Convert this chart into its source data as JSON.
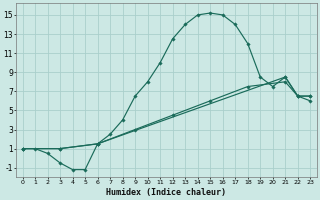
{
  "xlabel": "Humidex (Indice chaleur)",
  "background_color": "#cce8e4",
  "grid_color": "#aacfcc",
  "line_color": "#1a6b5a",
  "xlim": [
    -0.5,
    23.5
  ],
  "ylim": [
    -2.0,
    16.2
  ],
  "xticks": [
    0,
    1,
    2,
    3,
    4,
    5,
    6,
    7,
    8,
    9,
    10,
    11,
    12,
    13,
    14,
    15,
    16,
    17,
    18,
    19,
    20,
    21,
    22,
    23
  ],
  "yticks": [
    -1,
    1,
    3,
    5,
    7,
    9,
    11,
    13,
    15
  ],
  "curve1_x": [
    0,
    1,
    2,
    3,
    4,
    5,
    6,
    7,
    8,
    9,
    10,
    11,
    12,
    13,
    14,
    15,
    16,
    17,
    18,
    19,
    20,
    21,
    22,
    23
  ],
  "curve1_y": [
    1.0,
    1.0,
    0.5,
    -0.5,
    -1.2,
    -1.2,
    1.5,
    2.5,
    4.0,
    6.5,
    8.0,
    10.0,
    12.5,
    14.0,
    15.0,
    15.2,
    15.0,
    14.0,
    12.0,
    8.5,
    7.5,
    8.5,
    6.5,
    6.5
  ],
  "curve2_x": [
    0,
    3,
    6,
    21,
    22,
    23
  ],
  "curve2_y": [
    1.0,
    1.0,
    1.5,
    8.5,
    6.5,
    6.5
  ],
  "curve3_x": [
    0,
    3,
    6,
    9,
    12,
    15,
    18,
    21,
    22,
    23
  ],
  "curve3_y": [
    1.0,
    1.0,
    1.5,
    3.0,
    4.5,
    6.0,
    7.5,
    8.0,
    6.5,
    6.0
  ]
}
